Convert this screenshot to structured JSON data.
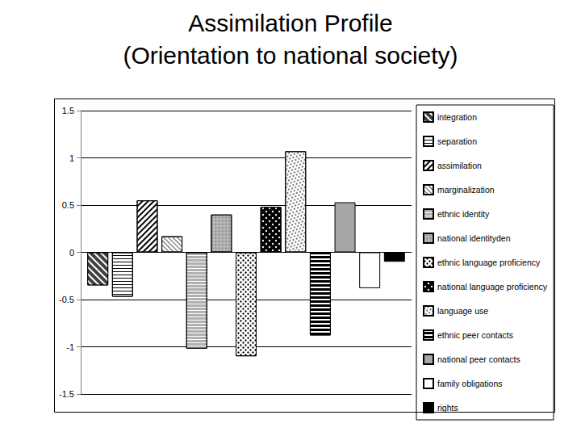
{
  "chart_data": {
    "type": "bar",
    "title": "Assimilation Profile",
    "subtitle": "(Orientation to national society)",
    "categories": [
      null
    ],
    "series": [
      {
        "name": "integration",
        "color": "#404040",
        "values": [
          -0.35
        ]
      },
      {
        "name": "separation",
        "color": "#ffffff",
        "values": [
          -0.47
        ]
      },
      {
        "name": "assimilation",
        "color": "#ffffff",
        "values": [
          0.55
        ]
      },
      {
        "name": "marginalization",
        "color": "#ffffff",
        "values": [
          0.17
        ]
      },
      {
        "name": "ethnic identity",
        "color": "#b0b0b0",
        "values": [
          -1.02
        ]
      },
      {
        "name": "national identityden",
        "color": "#a0a0a0",
        "values": [
          0.4
        ]
      },
      {
        "name": "ethnic language proficiency",
        "color": "#ffffff",
        "values": [
          -1.1
        ]
      },
      {
        "name": "national language proficiency",
        "color": "#000000",
        "values": [
          0.48
        ]
      },
      {
        "name": "language use",
        "color": "#ffffff",
        "values": [
          1.07
        ]
      },
      {
        "name": "ethnic peer contacts",
        "color": "#000000",
        "values": [
          -0.88
        ]
      },
      {
        "name": "national peer contacts",
        "color": "#a6a6a6",
        "values": [
          0.53
        ]
      },
      {
        "name": "family obligations",
        "color": "#ffffff",
        "values": [
          -0.38
        ]
      },
      {
        "name": "rights",
        "color": "#000000",
        "values": [
          -0.1
        ]
      }
    ],
    "ylim": [
      -1.5,
      1.5
    ],
    "yticks": [
      -1.5,
      -1,
      -0.5,
      0,
      0.5,
      1,
      1.5
    ],
    "grid": true,
    "legend": "right",
    "tick_labels": "y"
  }
}
